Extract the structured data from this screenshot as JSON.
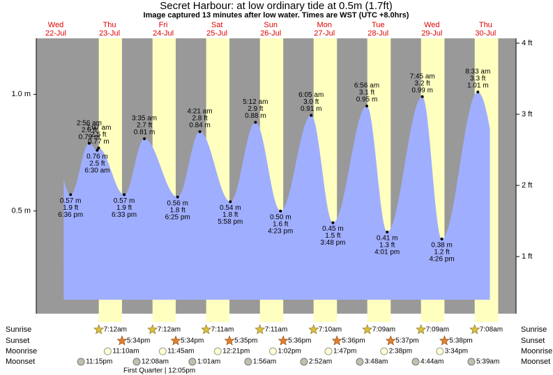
{
  "chart_data": {
    "type": "tide",
    "title": "Secret Harbour: at low  ordinary tide at 0.5m (1.7ft)",
    "subtitle": "Image captured 13 minutes after low water. Times are WST (UTC +8.0hrs)",
    "days": [
      {
        "weekday": "Wed",
        "date": "22-Jul"
      },
      {
        "weekday": "Thu",
        "date": "23-Jul"
      },
      {
        "weekday": "Fri",
        "date": "24-Jul"
      },
      {
        "weekday": "Sat",
        "date": "25-Jul"
      },
      {
        "weekday": "Sun",
        "date": "26-Jul"
      },
      {
        "weekday": "Mon",
        "date": "27-Jul"
      },
      {
        "weekday": "Tue",
        "date": "28-Jul"
      },
      {
        "weekday": "Wed",
        "date": "29-Jul"
      },
      {
        "weekday": "Thu",
        "date": "30-Jul"
      }
    ],
    "ylim": [
      0.06,
      1.24
    ],
    "yticks": [
      {
        "value": 0.5,
        "label": "0.5 m"
      },
      {
        "value": 1.0,
        "label": "1.0 m"
      }
    ],
    "y2lim": [
      0.197,
      4.068
    ],
    "y2ticks": [
      {
        "value": 1,
        "label": "1 ft"
      },
      {
        "value": 2,
        "label": "2 ft"
      },
      {
        "value": 3,
        "label": "3 ft"
      },
      {
        "value": 4,
        "label": "4 ft"
      }
    ],
    "color": "#a0aeff",
    "background": "#999999",
    "daylight_color": "#ffffc0",
    "extremes": [
      {
        "date": "22-Jul",
        "time": "6:36 pm",
        "value": 0.57,
        "value_label": "0.57 m",
        "ft_label": "1.9 ft"
      },
      {
        "date": "23-Jul",
        "time": "2:56 am",
        "value": 0.79,
        "value_label": "0.79 m",
        "ft_label": "2.6 ft"
      },
      {
        "date": "23-Jul",
        "time": "6:30 am",
        "value": 0.76,
        "value_label": "0.76 m",
        "ft_label": "2.5 ft"
      },
      {
        "date": "23-Jul",
        "time": "7:07 am",
        "value": 0.77,
        "value_label": "0.77 m",
        "ft_label": "2.5 ft"
      },
      {
        "date": "23-Jul",
        "time": "6:33 pm",
        "value": 0.57,
        "value_label": "0.57 m",
        "ft_label": "1.9 ft"
      },
      {
        "date": "24-Jul",
        "time": "3:35 am",
        "value": 0.81,
        "value_label": "0.81 m",
        "ft_label": "2.7 ft"
      },
      {
        "date": "24-Jul",
        "time": "6:25 pm",
        "value": 0.56,
        "value_label": "0.56 m",
        "ft_label": "1.8 ft"
      },
      {
        "date": "25-Jul",
        "time": "4:21 am",
        "value": 0.84,
        "value_label": "0.84 m",
        "ft_label": "2.8 ft"
      },
      {
        "date": "25-Jul",
        "time": "5:58 pm",
        "value": 0.54,
        "value_label": "0.54 m",
        "ft_label": "1.8 ft"
      },
      {
        "date": "26-Jul",
        "time": "5:12 am",
        "value": 0.88,
        "value_label": "0.88 m",
        "ft_label": "2.9 ft"
      },
      {
        "date": "26-Jul",
        "time": "4:23 pm",
        "value": 0.5,
        "value_label": "0.50 m",
        "ft_label": "1.6 ft"
      },
      {
        "date": "27-Jul",
        "time": "6:05 am",
        "value": 0.91,
        "value_label": "0.91 m",
        "ft_label": "3.0 ft"
      },
      {
        "date": "27-Jul",
        "time": "3:48 pm",
        "value": 0.45,
        "value_label": "0.45 m",
        "ft_label": "1.5 ft"
      },
      {
        "date": "28-Jul",
        "time": "6:56 am",
        "value": 0.95,
        "value_label": "0.95 m",
        "ft_label": "3.1 ft"
      },
      {
        "date": "28-Jul",
        "time": "4:01 pm",
        "value": 0.41,
        "value_label": "0.41 m",
        "ft_label": "1.3 ft"
      },
      {
        "date": "29-Jul",
        "time": "7:45 am",
        "value": 0.99,
        "value_label": "0.99 m",
        "ft_label": "3.2 ft"
      },
      {
        "date": "29-Jul",
        "time": "4:26 pm",
        "value": 0.38,
        "value_label": "0.38 m",
        "ft_label": "1.2 ft"
      },
      {
        "date": "30-Jul",
        "time": "8:33 am",
        "value": 1.01,
        "value_label": "1.01 m",
        "ft_label": "3.3 ft"
      }
    ],
    "astronomy": [
      {
        "name": "Sunrise",
        "events": [
          {
            "date": "23-Jul",
            "time": "7:12am"
          },
          {
            "date": "24-Jul",
            "time": "7:12am"
          },
          {
            "date": "25-Jul",
            "time": "7:11am"
          },
          {
            "date": "26-Jul",
            "time": "7:11am"
          },
          {
            "date": "27-Jul",
            "time": "7:10am"
          },
          {
            "date": "28-Jul",
            "time": "7:09am"
          },
          {
            "date": "29-Jul",
            "time": "7:09am"
          },
          {
            "date": "30-Jul",
            "time": "7:08am"
          }
        ]
      },
      {
        "name": "Sunset",
        "events": [
          {
            "date": "23-Jul",
            "time": "5:34pm"
          },
          {
            "date": "24-Jul",
            "time": "5:34pm"
          },
          {
            "date": "25-Jul",
            "time": "5:35pm"
          },
          {
            "date": "26-Jul",
            "time": "5:36pm"
          },
          {
            "date": "27-Jul",
            "time": "5:36pm"
          },
          {
            "date": "28-Jul",
            "time": "5:37pm"
          },
          {
            "date": "29-Jul",
            "time": "5:38pm"
          }
        ]
      },
      {
        "name": "Moonrise",
        "events": [
          {
            "date": "23-Jul",
            "time": "11:10am"
          },
          {
            "date": "24-Jul",
            "time": "11:45am"
          },
          {
            "date": "25-Jul",
            "time": "12:21pm"
          },
          {
            "date": "26-Jul",
            "time": "1:02pm"
          },
          {
            "date": "27-Jul",
            "time": "1:47pm"
          },
          {
            "date": "28-Jul",
            "time": "2:38pm"
          },
          {
            "date": "29-Jul",
            "time": "3:34pm"
          }
        ]
      },
      {
        "name": "Moonset",
        "events": [
          {
            "date": "22-Jul",
            "time": "11:15pm"
          },
          {
            "date": "24-Jul",
            "time": "12:08am"
          },
          {
            "date": "25-Jul",
            "time": "1:01am"
          },
          {
            "date": "26-Jul",
            "time": "1:56am"
          },
          {
            "date": "27-Jul",
            "time": "2:52am"
          },
          {
            "date": "28-Jul",
            "time": "3:48am"
          },
          {
            "date": "29-Jul",
            "time": "4:44am"
          },
          {
            "date": "30-Jul",
            "time": "5:39am"
          }
        ]
      }
    ],
    "moon_phase": "First Quarter | 12:05pm"
  }
}
